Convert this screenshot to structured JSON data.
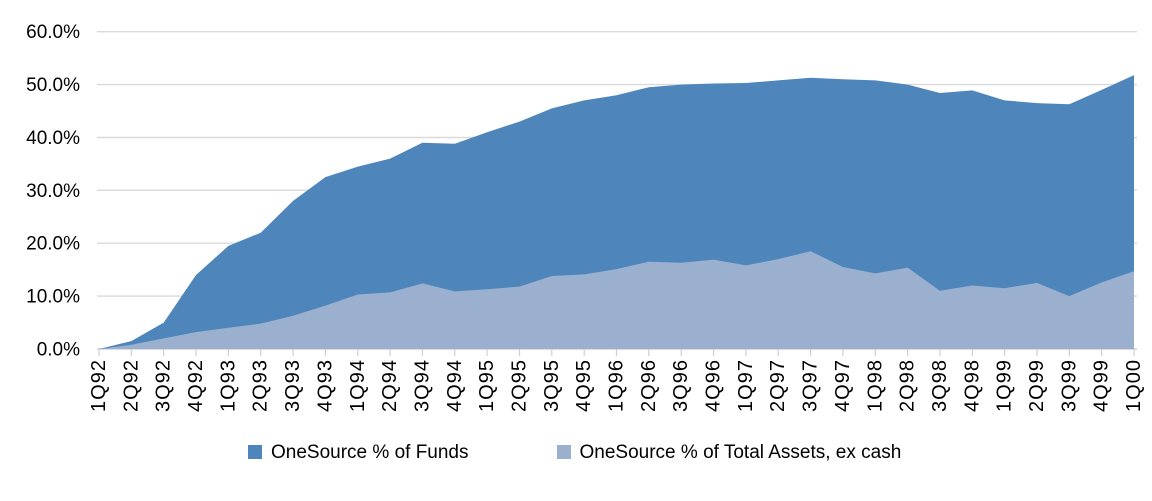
{
  "chart_data": {
    "type": "area",
    "title": "",
    "xlabel": "",
    "ylabel": "",
    "categories": [
      "1Q92",
      "2Q92",
      "3Q92",
      "4Q92",
      "1Q93",
      "2Q93",
      "3Q93",
      "4Q93",
      "1Q94",
      "2Q94",
      "3Q94",
      "4Q94",
      "1Q95",
      "2Q95",
      "3Q95",
      "4Q95",
      "1Q96",
      "2Q96",
      "3Q96",
      "4Q96",
      "1Q97",
      "2Q97",
      "3Q97",
      "4Q97",
      "1Q98",
      "2Q98",
      "3Q98",
      "4Q98",
      "1Q99",
      "2Q99",
      "3Q99",
      "4Q99",
      "1Q00"
    ],
    "series": [
      {
        "name": "OneSource % of Funds",
        "color": "#4e86bb",
        "values": [
          0.0,
          1.5,
          5.0,
          14.0,
          19.5,
          22.0,
          28.0,
          32.5,
          34.5,
          36.0,
          39.0,
          38.8,
          41.0,
          43.0,
          45.5,
          47.0,
          48.0,
          49.5,
          50.0,
          50.2,
          50.3,
          50.8,
          51.3,
          51.0,
          50.8,
          50.0,
          48.4,
          48.9,
          47.0,
          46.5,
          46.3,
          49.0,
          51.8
        ]
      },
      {
        "name": "OneSource % of Total Assets, ex cash",
        "color": "#9bafce",
        "values": [
          0.0,
          0.8,
          2.0,
          3.2,
          4.0,
          4.8,
          6.3,
          8.2,
          10.3,
          10.7,
          12.4,
          10.9,
          11.3,
          11.8,
          13.8,
          14.1,
          15.1,
          16.5,
          16.3,
          16.9,
          15.8,
          17.0,
          18.5,
          15.5,
          14.3,
          15.4,
          11.0,
          12.0,
          11.5,
          12.5,
          10.0,
          12.6,
          14.7
        ]
      }
    ],
    "ylim": [
      0,
      60
    ],
    "yticks": [
      "0.0%",
      "10.0%",
      "20.0%",
      "30.0%",
      "40.0%",
      "50.0%",
      "60.0%"
    ],
    "grid": true,
    "gridline_color": "#d9d9d9",
    "axis_color": "#cfcfcf",
    "legend_position": "bottom"
  }
}
